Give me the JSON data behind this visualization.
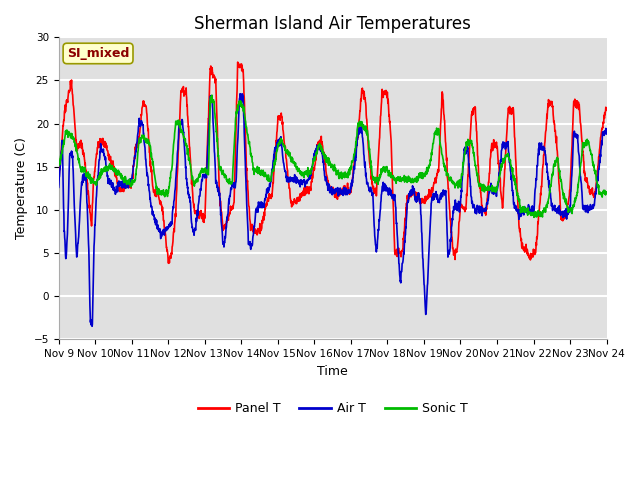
{
  "title": "Sherman Island Air Temperatures",
  "xlabel": "Time",
  "ylabel": "Temperature (C)",
  "ylim": [
    -5,
    30
  ],
  "yticks": [
    -5,
    0,
    5,
    10,
    15,
    20,
    25,
    30
  ],
  "x_tick_labels": [
    "Nov 9",
    "Nov 10",
    "Nov 11",
    "Nov 12",
    "Nov 13",
    "Nov 14",
    "Nov 15",
    "Nov 16",
    "Nov 17",
    "Nov 18",
    "Nov 19",
    "Nov 20",
    "Nov 21",
    "Nov 22",
    "Nov 23",
    "Nov 24"
  ],
  "bg_color": "#e0e0e0",
  "fig_color": "#ffffff",
  "grid_color": "#ffffff",
  "annotation_text": "SI_mixed",
  "annotation_color": "#8b0000",
  "annotation_bg": "#ffffcc",
  "annotation_edge": "#999900",
  "line_colors": {
    "panel": "#ff0000",
    "air": "#0000cc",
    "sonic": "#00bb00"
  },
  "legend_labels": [
    "Panel T",
    "Air T",
    "Sonic T"
  ],
  "linewidth": 1.2
}
